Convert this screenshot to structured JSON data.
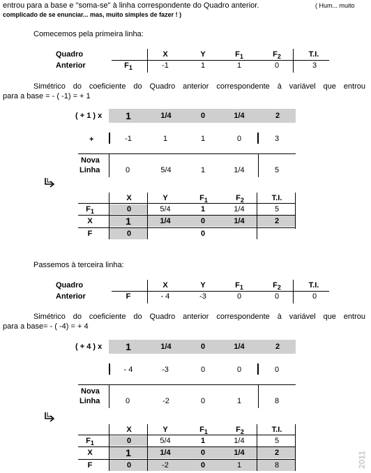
{
  "intro": {
    "line1": "entrou para a base  e \"soma-se\" à linha correspondente do Quadro anterior.",
    "line1_aside": "( Hum...  muito",
    "line2": "complicado de se enunciar...  mas, muito simples de fazer ! )"
  },
  "section1": {
    "heading": "Comecemos pela primeira linha:",
    "quadro_label_1": "Quadro",
    "quadro_label_2": "Anterior",
    "row_label": "F",
    "row_label_sub": "1",
    "headers": [
      "X",
      "Y",
      "F",
      "F",
      "T.I."
    ],
    "header_subs": [
      "",
      "",
      "1",
      "2",
      ""
    ],
    "values": [
      "-1",
      "1",
      "1",
      "0",
      "3"
    ],
    "sym_text_1": "Simétrico do coeficiente do Quadro anterior correspondente à variável que entrou",
    "sym_text_2": "para a base = - ( -1) = + 1",
    "mult_label": "( + 1 ) x",
    "mult_row": [
      "1",
      "1/4",
      "0",
      "1/4",
      "2"
    ],
    "plus_label": "+",
    "plus_row": [
      "-1",
      "1",
      "1",
      "0",
      "3"
    ],
    "nova_1": "Nova",
    "nova_2": "Linha",
    "nova_row": [
      "0",
      "5/4",
      "1",
      "1/4",
      "5"
    ],
    "table": {
      "headers": [
        "X",
        "Y",
        "F",
        "F",
        "T.I."
      ],
      "header_subs": [
        "",
        "",
        "1",
        "2",
        ""
      ],
      "row1_label": "F",
      "row1_sub": "1",
      "row1": [
        "0",
        "5/4",
        "1",
        "1/4",
        "5"
      ],
      "row2_label": "X",
      "row2": [
        "1",
        "1/4",
        "0",
        "1/4",
        "2"
      ],
      "row3_label": "F",
      "row3": [
        "0",
        "",
        "0",
        "",
        ""
      ]
    }
  },
  "section2": {
    "heading": "Passemos à terceira linha:",
    "quadro_label_1": "Quadro",
    "quadro_label_2": "Anterior",
    "row_label": "F",
    "headers": [
      "X",
      "Y",
      "F",
      "F",
      "T.I."
    ],
    "header_subs": [
      "",
      "",
      "1",
      "2",
      ""
    ],
    "values": [
      "- 4",
      "-3",
      "0",
      "0",
      "0"
    ],
    "sym_text_1": "Simétrico do coeficiente do Quadro anterior correspondente à variável que entrou",
    "sym_text_2": "para a base= - ( -4) = + 4",
    "mult_label": "( + 4 ) x",
    "mult_row": [
      "1",
      "1/4",
      "0",
      "1/4",
      "2"
    ],
    "plus_row": [
      "- 4",
      "-3",
      "0",
      "0",
      "0"
    ],
    "nova_1": "Nova",
    "nova_2": "Linha",
    "nova_row": [
      "0",
      "-2",
      "0",
      "1",
      "8"
    ],
    "table": {
      "headers": [
        "X",
        "Y",
        "F",
        "F",
        "T.I."
      ],
      "header_subs": [
        "",
        "",
        "1",
        "2",
        ""
      ],
      "row1_label": "F",
      "row1_sub": "1",
      "row1": [
        "0",
        "5/4",
        "1",
        "1/4",
        "5"
      ],
      "row2_label": "X",
      "row2": [
        "1",
        "1/4",
        "0",
        "1/4",
        "2"
      ],
      "row3_label": "F",
      "row3": [
        "0",
        "-2",
        "0",
        "1",
        "8"
      ]
    }
  },
  "icons": {
    "arrow": "hook-arrow-icon"
  },
  "watermark": "2011",
  "colors": {
    "shade": "#cfcfcf",
    "watermark": "#cccccc"
  }
}
